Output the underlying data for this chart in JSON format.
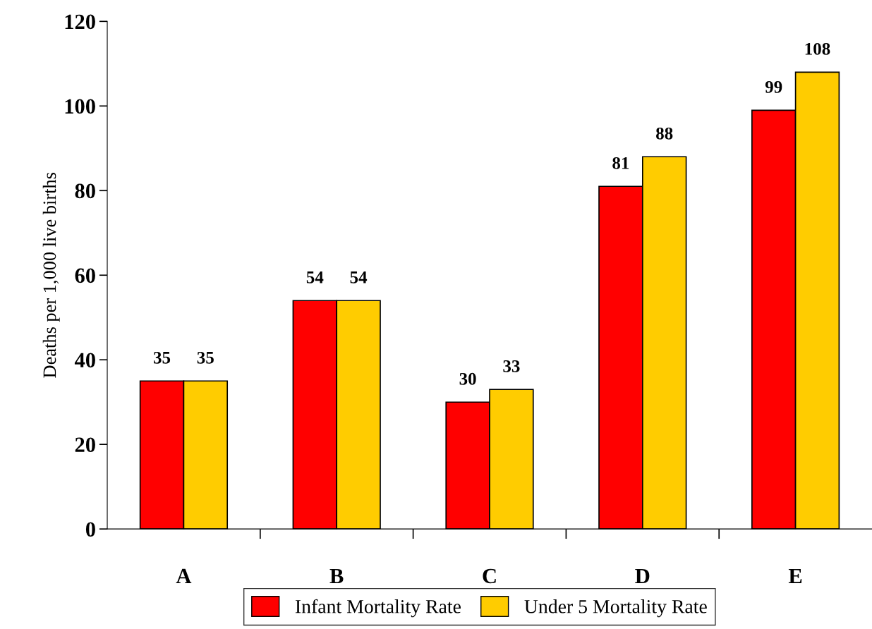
{
  "chart_data": {
    "type": "bar",
    "ylabel": "Deaths per 1,000 live births",
    "categories": [
      "A",
      "B",
      "C",
      "D",
      "E"
    ],
    "series": [
      {
        "name": "Infant Mortality Rate",
        "color": "#ff0000",
        "values": [
          35,
          54,
          30,
          81,
          99
        ]
      },
      {
        "name": "Under 5 Mortality Rate",
        "color": "#ffcc00",
        "values": [
          35,
          54,
          33,
          88,
          108
        ]
      }
    ],
    "ylim": [
      0,
      120
    ],
    "yticks": [
      0,
      20,
      40,
      60,
      80,
      100,
      120
    ],
    "data_labels": true,
    "grid": false,
    "legend": "bottom"
  }
}
